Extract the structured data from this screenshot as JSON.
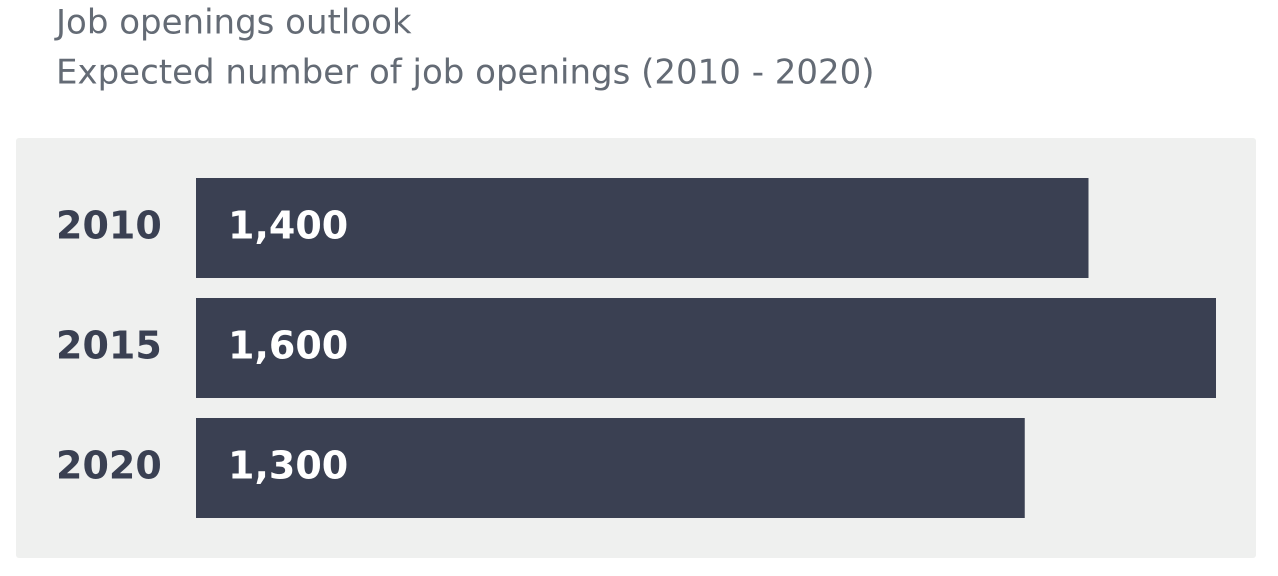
{
  "chart_data": {
    "type": "bar",
    "orientation": "horizontal",
    "title": "Job openings outlook",
    "subtitle": "Expected number of job openings (2010 - 2020)",
    "categories": [
      "2010",
      "2015",
      "2020"
    ],
    "values": [
      1400,
      1600,
      1300
    ],
    "value_labels": [
      "1,400",
      "1,600",
      "1,300"
    ],
    "color": "#3a4052",
    "xlim": [
      0,
      1600
    ]
  }
}
